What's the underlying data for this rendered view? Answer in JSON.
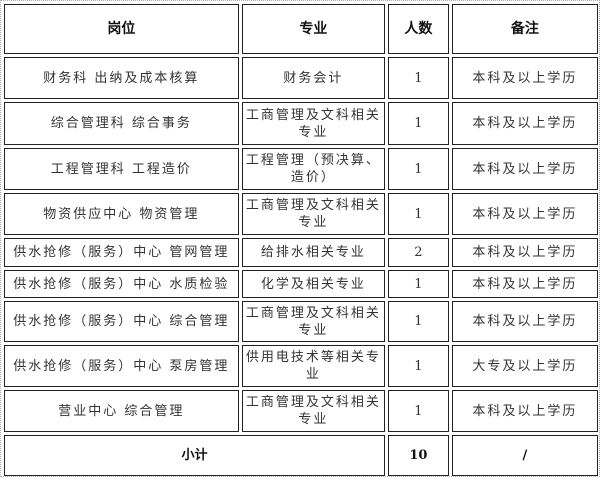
{
  "headers": [
    "岗位",
    "专业",
    "人数",
    "备注"
  ],
  "rows": [
    {
      "position": "财务科 出纳及成本核算",
      "major": "财务会计",
      "count": "1",
      "note": "本科及以上学历"
    },
    {
      "position": "综合管理科 综合事务",
      "major": "工商管理及文科相关专业",
      "count": "1",
      "note": "本科及以上学历"
    },
    {
      "position": "工程管理科 工程造价",
      "major": "工程管理（预决算、造价）",
      "count": "1",
      "note": "本科及以上学历"
    },
    {
      "position": "物资供应中心 物资管理",
      "major": "工商管理及文科相关专业",
      "count": "1",
      "note": "本科及以上学历"
    },
    {
      "position": "供水抢修（服务）中心 管网管理",
      "major": "给排水相关专业",
      "count": "2",
      "note": "本科及以上学历"
    },
    {
      "position": "供水抢修（服务）中心 水质检验",
      "major": "化学及相关专业",
      "count": "1",
      "note": "本科及以上学历"
    },
    {
      "position": "供水抢修（服务）中心 综合管理",
      "major": "工商管理及文科相关专业",
      "count": "1",
      "note": "本科及以上学历"
    },
    {
      "position": "供水抢修（服务）中心 泵房管理",
      "major": "供用电技术等相关专业",
      "count": "1",
      "note": "大专及以上学历"
    },
    {
      "position": "营业中心 综合管理",
      "major": "工商管理及文科相关专业",
      "count": "1",
      "note": "本科及以上学历"
    }
  ],
  "total": {
    "label": "小计",
    "count": "10",
    "note": "/"
  }
}
